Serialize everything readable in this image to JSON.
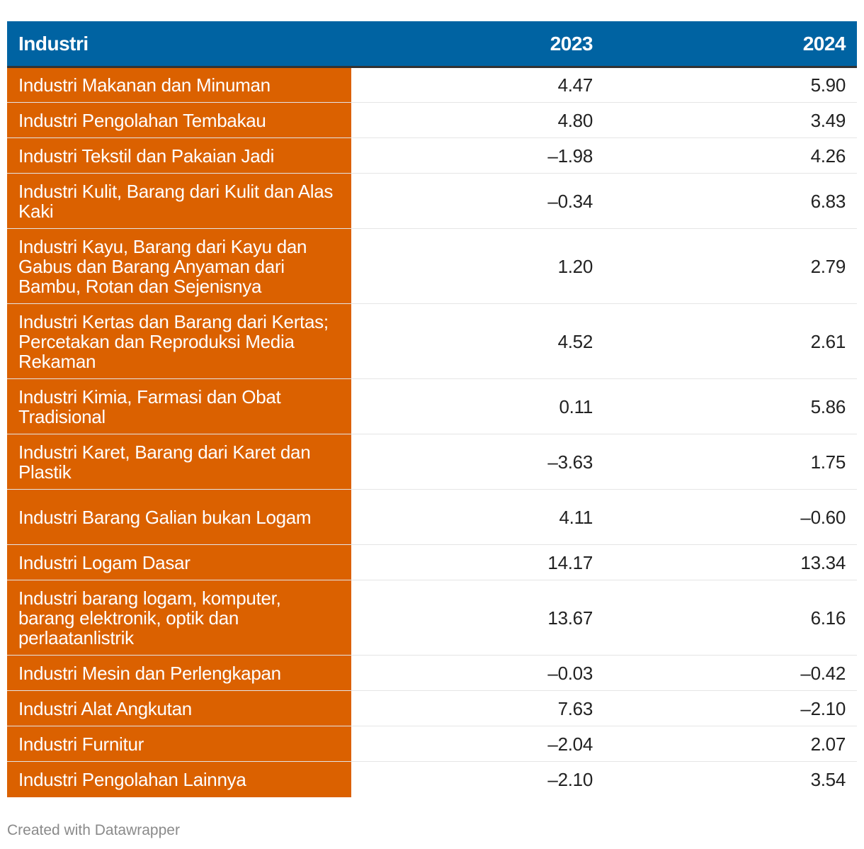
{
  "colors": {
    "header_bg": "#0063a2",
    "name_column_bg": "#db6100",
    "header_rule": "#333333",
    "row_divider": "#e5e5e5",
    "footer_text": "#8a8a8a"
  },
  "chart_data": {
    "type": "table",
    "columns": [
      "Industri",
      "2023",
      "2024"
    ],
    "rows": [
      {
        "name": "Industri Makanan dan Minuman",
        "v2023": "4.47",
        "v2024": "5.90"
      },
      {
        "name": "Industri Pengolahan Tembakau",
        "v2023": "4.80",
        "v2024": "3.49"
      },
      {
        "name": "Industri Tekstil dan Pakaian Jadi",
        "v2023": "–1.98",
        "v2024": "4.26"
      },
      {
        "name": "Industri Kulit, Barang dari Kulit dan Alas Kaki",
        "v2023": "–0.34",
        "v2024": "6.83"
      },
      {
        "name": "Industri Kayu, Barang dari Kayu dan Gabus dan Barang Anyaman dari Bambu, Rotan dan Sejenisnya",
        "v2023": "1.20",
        "v2024": "2.79"
      },
      {
        "name": "Industri Kertas dan Barang dari Kertas; Percetakan dan Reproduksi Media Rekaman",
        "v2023": "4.52",
        "v2024": "2.61"
      },
      {
        "name": "Industri Kimia, Farmasi dan Obat Tradisional",
        "v2023": "0.11",
        "v2024": "5.86"
      },
      {
        "name": "Industri Karet, Barang dari Karet dan Plastik",
        "v2023": "–3.63",
        "v2024": "1.75"
      },
      {
        "name": "Industri Barang Galian bukan Logam",
        "v2023": "4.11",
        "v2024": "–0.60"
      },
      {
        "name": "Industri Logam Dasar",
        "v2023": "14.17",
        "v2024": "13.34"
      },
      {
        "name": "Industri barang logam, komputer, barang elektronik, optik dan perlaatanlistrik",
        "v2023": "13.67",
        "v2024": "6.16"
      },
      {
        "name": "Industri Mesin dan Perlengkapan",
        "v2023": "–0.03",
        "v2024": "–0.42"
      },
      {
        "name": "Industri Alat Angkutan",
        "v2023": "7.63",
        "v2024": "–2.10"
      },
      {
        "name": "Industri Furnitur",
        "v2023": "–2.04",
        "v2024": "2.07"
      },
      {
        "name": "Industri Pengolahan Lainnya",
        "v2023": "–2.10",
        "v2024": "3.54"
      }
    ]
  },
  "footer": {
    "credit": "Created with Datawrapper"
  }
}
